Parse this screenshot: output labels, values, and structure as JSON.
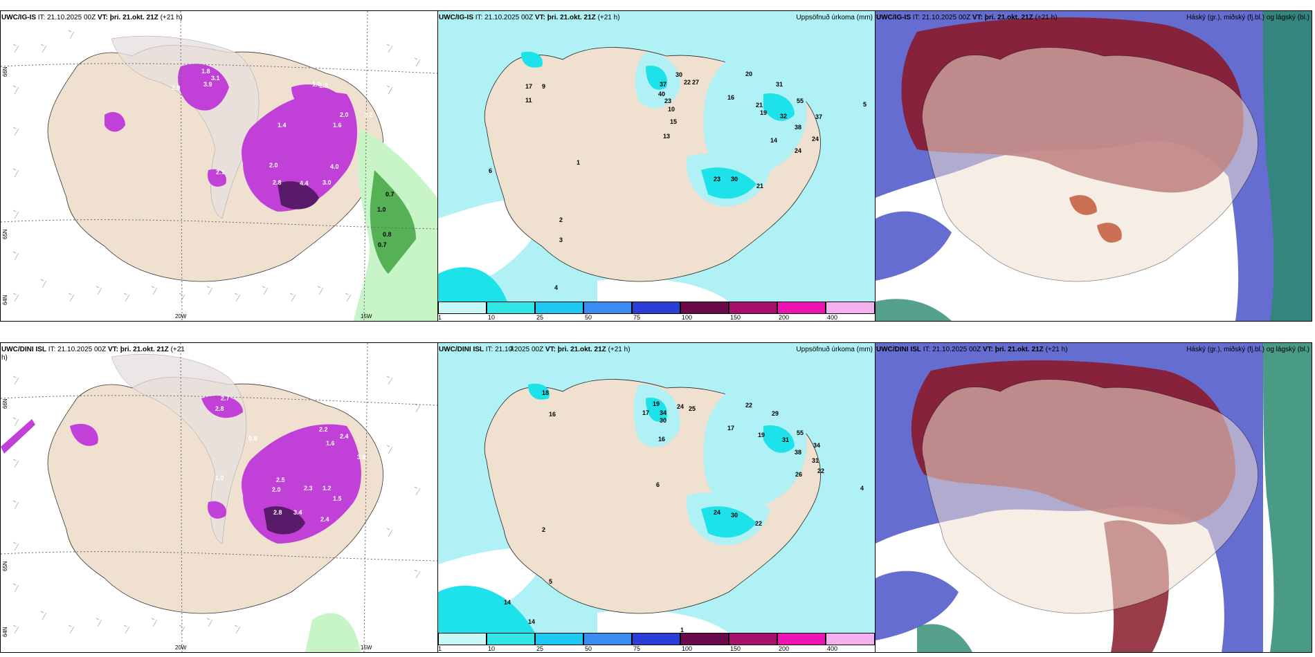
{
  "rows": [
    {
      "precip_panel": {
        "model": "UWC/IG-IS",
        "it_text": "IT: 21.10.2025 00Z",
        "vt_label": "VT: þri. 21.okt. 21Z",
        "lead": "(+21 h)"
      },
      "total_panel": {
        "model": "UWC/IG-IS",
        "it_text": "IT: 21.10.2025 00Z",
        "vt_label": "VT: þri. 21.okt. 21Z",
        "lead": "(+21 h)",
        "right_title": "Uppsöfnuð úrkoma (mm)"
      },
      "cloud_panel": {
        "model": "UWC/IG-IS",
        "it_text": "IT: 21.10.2025 00Z",
        "vt_label": "VT: þri. 21.okt. 21Z",
        "lead": "(+21 h)",
        "right_title": "Háský (gr.), miðský (fj.bl.) og lágský (bl.)"
      },
      "precip_values": [
        "2.9",
        "3.9",
        "3.1",
        "1.8",
        "1.3",
        "1.0",
        "2.0",
        "1.6",
        "1.4",
        "4.0",
        "3.2",
        "2.0",
        "2.8",
        "4.4",
        "3.0",
        "2.1",
        "0.7",
        "1.0",
        "0.8",
        "0.7"
      ],
      "total_values": [
        "17",
        "9",
        "11",
        "15",
        "13",
        "37",
        "40",
        "23",
        "30",
        "22",
        "27",
        "10",
        "16",
        "20",
        "31",
        "21",
        "19",
        "55",
        "32",
        "38",
        "37",
        "24",
        "14",
        "24",
        "23",
        "30",
        "21",
        "6",
        "2",
        "3",
        "4",
        "5",
        "1"
      ],
      "lon_labels": [
        "20W",
        "15W"
      ],
      "lat_labels": [
        "66N",
        "64N",
        "65N"
      ]
    },
    {
      "precip_panel": {
        "model": "UWC/DINI ISL",
        "it_text": "IT: 21.10.2025 00Z",
        "vt_label": "VT: þri. 21.okt. 21Z",
        "lead": "(+21 h)"
      },
      "total_panel": {
        "model": "UWC/DINI ISL",
        "it_text": "IT: 21.10.2025 00Z",
        "vt_label": "VT: þri. 21.okt. 21Z",
        "lead": "(+21 h)",
        "right_title": "Uppsöfnuð úrkoma (mm)"
      },
      "cloud_panel": {
        "model": "UWC/DINI ISL",
        "it_text": "IT: 21.10.2025 00Z",
        "vt_label": "VT: þri. 21.okt. 21Z",
        "lead": "(+21 h)",
        "right_title": "Háský (gr.), miðský (fj.bl.) og lágský (bl.)"
      },
      "precip_values": [
        "2.8",
        "2.7",
        "1.6",
        "1.0",
        "0.8",
        "2.2",
        "2.4",
        "3.6",
        "2.5",
        "2.0",
        "2.3",
        "1.2",
        "2.8",
        "3.4",
        "2.4",
        "1.5"
      ],
      "total_values": [
        "18",
        "16",
        "19",
        "17",
        "34",
        "30",
        "24",
        "25",
        "22",
        "29",
        "17",
        "16",
        "19",
        "31",
        "55",
        "38",
        "31",
        "34",
        "26",
        "22",
        "24",
        "30",
        "22",
        "14",
        "14",
        "6",
        "5",
        "2",
        "3",
        "4",
        "1"
      ],
      "lon_labels": [
        "20W",
        "15W"
      ],
      "lat_labels": [
        "66N",
        "64N",
        "65N"
      ]
    }
  ],
  "colorbar": {
    "labels": [
      "1",
      "10",
      "25",
      "50",
      "75",
      "100",
      "150",
      "200",
      "400"
    ],
    "colors": [
      "#c8f7f7",
      "#33e6e6",
      "#1ec8f0",
      "#3a8cf0",
      "#2b3fd6",
      "#6b0a4a",
      "#a8106e",
      "#ee14b4",
      "#f5b0ef"
    ]
  },
  "map_colors": {
    "land": "#efe0cf",
    "sea": "#ffffff",
    "precip": "#c040d8",
    "total_sea": "#aff1f4",
    "total_bright": "#1de2ea",
    "cloud_high": "#8a1a2a",
    "cloud_mid": "#4a55c8",
    "cloud_low": "#2a8a70"
  }
}
